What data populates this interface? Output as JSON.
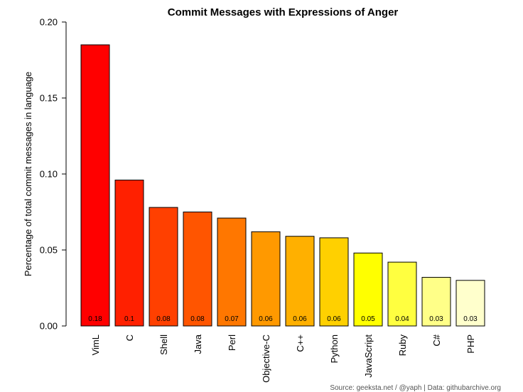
{
  "chart_data": {
    "type": "bar",
    "title": "Commit Messages with Expressions of Anger",
    "xlabel": "",
    "ylabel": "Percentage of total commit messages in language",
    "ylim": [
      0,
      0.2
    ],
    "yticks": [
      "0.00",
      "0.05",
      "0.10",
      "0.15",
      "0.20"
    ],
    "ytick_values": [
      0,
      0.05,
      0.1,
      0.15,
      0.2
    ],
    "categories": [
      "VimL",
      "C",
      "Shell",
      "Java",
      "Perl",
      "Objective-C",
      "C++",
      "Python",
      "JavaScript",
      "Ruby",
      "C#",
      "PHP"
    ],
    "values": [
      0.185,
      0.096,
      0.078,
      0.075,
      0.071,
      0.062,
      0.059,
      0.058,
      0.048,
      0.042,
      0.032,
      0.03
    ],
    "data_labels": [
      "0.18",
      "0.1",
      "0.08",
      "0.08",
      "0.07",
      "0.06",
      "0.06",
      "0.06",
      "0.05",
      "0.04",
      "0.03",
      "0.03"
    ],
    "colors": [
      "#ff0000",
      "#ff2000",
      "#ff4000",
      "#ff5500",
      "#ff7700",
      "#ff9900",
      "#ffb000",
      "#ffd000",
      "#ffff00",
      "#ffff40",
      "#ffff88",
      "#ffffcc"
    ],
    "grid": false,
    "source": "Source: geeksta.net / @yaph | Data: githubarchive.org"
  }
}
